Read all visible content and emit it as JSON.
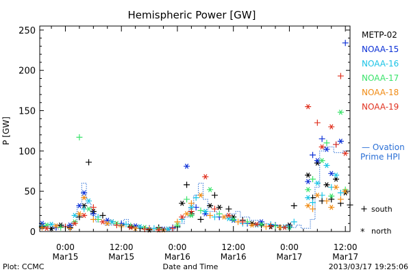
{
  "chart_data": {
    "type": "scatter",
    "title": "Hemispheric Power [GW]",
    "ylabel": "P [GW]",
    "xlabel": "Date and Time",
    "ylim": [
      0,
      255
    ],
    "yticks": [
      0,
      50,
      100,
      150,
      200,
      250
    ],
    "xlim": [
      -5.5,
      61
    ],
    "xticks": [
      {
        "x": 0,
        "time": "0:00",
        "date": "Mar15"
      },
      {
        "x": 12,
        "time": "12:00",
        "date": "Mar15"
      },
      {
        "x": 24,
        "time": "0:00",
        "date": "Mar16"
      },
      {
        "x": 36,
        "time": "12:00",
        "date": "Mar16"
      },
      {
        "x": 48,
        "time": "0:00",
        "date": "Mar17"
      },
      {
        "x": 60,
        "time": "12:00",
        "date": "Mar17"
      }
    ],
    "legend": [
      "METP-02",
      "NOAA-15",
      "NOAA-16",
      "NOAA-17",
      "NOAA-18",
      "NOAA-19"
    ],
    "legend_colors": [
      "#000000",
      "#0a2fd6",
      "#19c3e6",
      "#39e36a",
      "#f08a12",
      "#e0301e"
    ],
    "ovation_label": [
      "— Ovation",
      "Prime HPI"
    ],
    "ovation_color": "#2a6fd6",
    "marker_legend": {
      "south": "south",
      "north": "north"
    },
    "credit": "Plot: CCMC",
    "timestamp": "2013/03/17 19:25:06",
    "ovation": [
      [
        -5.5,
        6
      ],
      [
        -3.5,
        3
      ],
      [
        -1.5,
        7
      ],
      [
        0.5,
        4
      ],
      [
        1.5,
        12
      ],
      [
        2.5,
        32
      ],
      [
        3.5,
        60
      ],
      [
        4.5,
        35
      ],
      [
        5.5,
        20
      ],
      [
        6.5,
        12
      ],
      [
        8.5,
        8
      ],
      [
        10.5,
        10
      ],
      [
        12.5,
        15
      ],
      [
        13.5,
        8
      ],
      [
        15.5,
        5
      ],
      [
        17.5,
        3
      ],
      [
        19.5,
        4
      ],
      [
        21.5,
        2
      ],
      [
        23.5,
        5
      ],
      [
        24.5,
        10
      ],
      [
        25.5,
        18
      ],
      [
        26.5,
        30
      ],
      [
        27.5,
        45
      ],
      [
        28.5,
        60
      ],
      [
        29.5,
        40
      ],
      [
        30.5,
        25
      ],
      [
        32.5,
        18
      ],
      [
        34.5,
        22
      ],
      [
        36.5,
        25
      ],
      [
        37.5,
        18
      ],
      [
        39.5,
        14
      ],
      [
        41.5,
        10
      ],
      [
        43.5,
        8
      ],
      [
        45.5,
        6
      ],
      [
        47.5,
        5
      ],
      [
        49.5,
        8
      ],
      [
        50.5,
        4
      ],
      [
        52.5,
        15
      ],
      [
        53.5,
        55
      ],
      [
        54.5,
        100
      ],
      [
        55.5,
        105
      ],
      [
        57.5,
        98
      ],
      [
        59.5,
        100
      ],
      [
        61,
        95
      ]
    ],
    "series": [
      {
        "name": "METP-02",
        "points": [
          [
            -5,
            6,
            "n"
          ],
          [
            -3,
            4,
            "n"
          ],
          [
            -1,
            8,
            "n"
          ],
          [
            1,
            5,
            "n"
          ],
          [
            3,
            18,
            "s"
          ],
          [
            4,
            32,
            "n"
          ],
          [
            5,
            86,
            "s"
          ],
          [
            6,
            25,
            "n"
          ],
          [
            8,
            20,
            "s"
          ],
          [
            10,
            12,
            "n"
          ],
          [
            12,
            8,
            "s"
          ],
          [
            14,
            6,
            "n"
          ],
          [
            16,
            4,
            "s"
          ],
          [
            18,
            2,
            "n"
          ],
          [
            20,
            5,
            "s"
          ],
          [
            22,
            3,
            "n"
          ],
          [
            24,
            6,
            "s"
          ],
          [
            25,
            35,
            "n"
          ],
          [
            26,
            58,
            "s"
          ],
          [
            27,
            22,
            "n"
          ],
          [
            29,
            15,
            "s"
          ],
          [
            31,
            32,
            "n"
          ],
          [
            32,
            45,
            "s"
          ],
          [
            33,
            30,
            "n"
          ],
          [
            35,
            28,
            "s"
          ],
          [
            36,
            18,
            "n"
          ],
          [
            38,
            14,
            "s"
          ],
          [
            40,
            10,
            "n"
          ],
          [
            42,
            8,
            "s"
          ],
          [
            44,
            6,
            "n"
          ],
          [
            46,
            5,
            "s"
          ],
          [
            48,
            8,
            "n"
          ],
          [
            49,
            32,
            "s"
          ],
          [
            52,
            70,
            "n"
          ],
          [
            53,
            42,
            "s"
          ],
          [
            54,
            85,
            "n"
          ],
          [
            55,
            38,
            "s"
          ],
          [
            56,
            58,
            "n"
          ],
          [
            57,
            40,
            "s"
          ],
          [
            58,
            65,
            "n"
          ],
          [
            59,
            35,
            "s"
          ],
          [
            60,
            48,
            "n"
          ],
          [
            61,
            33,
            "s"
          ]
        ]
      },
      {
        "name": "NOAA-15",
        "points": [
          [
            -5,
            10,
            "n"
          ],
          [
            -2,
            5,
            "s"
          ],
          [
            1,
            8,
            "n"
          ],
          [
            3,
            32,
            "n"
          ],
          [
            4,
            48,
            "n"
          ],
          [
            6,
            22,
            "s"
          ],
          [
            9,
            14,
            "n"
          ],
          [
            12,
            10,
            "s"
          ],
          [
            15,
            7,
            "n"
          ],
          [
            18,
            4,
            "s"
          ],
          [
            21,
            3,
            "n"
          ],
          [
            23,
            5,
            "s"
          ],
          [
            26,
            81,
            "n"
          ],
          [
            28,
            30,
            "s"
          ],
          [
            30,
            22,
            "n"
          ],
          [
            33,
            18,
            "s"
          ],
          [
            36,
            14,
            "n"
          ],
          [
            39,
            10,
            "s"
          ],
          [
            42,
            12,
            "n"
          ],
          [
            45,
            8,
            "s"
          ],
          [
            48,
            6,
            "n"
          ],
          [
            52,
            62,
            "n"
          ],
          [
            53,
            95,
            "s"
          ],
          [
            54,
            88,
            "n"
          ],
          [
            55,
            115,
            "s"
          ],
          [
            56,
            102,
            "n"
          ],
          [
            57,
            72,
            "n"
          ],
          [
            58,
            108,
            "s"
          ],
          [
            59,
            112,
            "n"
          ],
          [
            60,
            234,
            "s"
          ]
        ]
      },
      {
        "name": "NOAA-16",
        "points": [
          [
            -5,
            7,
            "s"
          ],
          [
            -3,
            9,
            "n"
          ],
          [
            0,
            6,
            "s"
          ],
          [
            2,
            20,
            "n"
          ],
          [
            4,
            28,
            "s"
          ],
          [
            5,
            38,
            "n"
          ],
          [
            7,
            18,
            "s"
          ],
          [
            10,
            12,
            "n"
          ],
          [
            13,
            9,
            "s"
          ],
          [
            16,
            6,
            "n"
          ],
          [
            19,
            4,
            "s"
          ],
          [
            22,
            3,
            "n"
          ],
          [
            25,
            15,
            "s"
          ],
          [
            27,
            30,
            "n"
          ],
          [
            28,
            42,
            "s"
          ],
          [
            30,
            25,
            "n"
          ],
          [
            32,
            18,
            "s"
          ],
          [
            35,
            16,
            "n"
          ],
          [
            38,
            10,
            "s"
          ],
          [
            41,
            8,
            "n"
          ],
          [
            44,
            9,
            "s"
          ],
          [
            47,
            6,
            "n"
          ],
          [
            49,
            12,
            "s"
          ],
          [
            52,
            42,
            "n"
          ],
          [
            53,
            36,
            "s"
          ],
          [
            54,
            60,
            "n"
          ],
          [
            55,
            45,
            "s"
          ],
          [
            56,
            82,
            "n"
          ],
          [
            57,
            55,
            "s"
          ],
          [
            58,
            70,
            "n"
          ],
          [
            59,
            48,
            "s"
          ]
        ]
      },
      {
        "name": "NOAA-17",
        "points": [
          [
            -4,
            8,
            "n"
          ],
          [
            -1,
            5,
            "s"
          ],
          [
            2,
            12,
            "n"
          ],
          [
            3,
            117,
            "s"
          ],
          [
            5,
            28,
            "n"
          ],
          [
            7,
            15,
            "s"
          ],
          [
            11,
            10,
            "n"
          ],
          [
            14,
            7,
            "s"
          ],
          [
            17,
            5,
            "n"
          ],
          [
            20,
            3,
            "s"
          ],
          [
            24,
            8,
            "n"
          ],
          [
            26,
            40,
            "s"
          ],
          [
            27,
            20,
            "n"
          ],
          [
            29,
            26,
            "s"
          ],
          [
            31,
            52,
            "n"
          ],
          [
            33,
            22,
            "s"
          ],
          [
            36,
            15,
            "n"
          ],
          [
            39,
            12,
            "s"
          ],
          [
            42,
            9,
            "n"
          ],
          [
            45,
            7,
            "s"
          ],
          [
            48,
            5,
            "n"
          ],
          [
            52,
            52,
            "n"
          ],
          [
            53,
            65,
            "s"
          ],
          [
            55,
            88,
            "n"
          ],
          [
            56,
            110,
            "s"
          ],
          [
            57,
            44,
            "n"
          ],
          [
            59,
            148,
            "n"
          ],
          [
            60,
            52,
            "s"
          ]
        ]
      },
      {
        "name": "NOAA-18",
        "points": [
          [
            -5,
            5,
            "s"
          ],
          [
            -2,
            7,
            "n"
          ],
          [
            1,
            4,
            "s"
          ],
          [
            3,
            22,
            "n"
          ],
          [
            4,
            42,
            "n"
          ],
          [
            6,
            15,
            "s"
          ],
          [
            9,
            10,
            "n"
          ],
          [
            12,
            6,
            "s"
          ],
          [
            15,
            4,
            "n"
          ],
          [
            18,
            3,
            "s"
          ],
          [
            21,
            2,
            "n"
          ],
          [
            24,
            12,
            "s"
          ],
          [
            26,
            22,
            "n"
          ],
          [
            27,
            35,
            "s"
          ],
          [
            29,
            45,
            "n"
          ],
          [
            31,
            20,
            "s"
          ],
          [
            34,
            18,
            "n"
          ],
          [
            37,
            12,
            "s"
          ],
          [
            40,
            8,
            "n"
          ],
          [
            43,
            6,
            "s"
          ],
          [
            46,
            5,
            "n"
          ],
          [
            52,
            32,
            "n"
          ],
          [
            53,
            28,
            "s"
          ],
          [
            54,
            45,
            "n"
          ],
          [
            56,
            38,
            "s"
          ],
          [
            57,
            30,
            "n"
          ],
          [
            58,
            55,
            "n"
          ],
          [
            59,
            40,
            "s"
          ],
          [
            60,
            50,
            "n"
          ]
        ]
      },
      {
        "name": "NOAA-19",
        "points": [
          [
            -4,
            4,
            "n"
          ],
          [
            0,
            6,
            "s"
          ],
          [
            2,
            10,
            "n"
          ],
          [
            4,
            20,
            "n"
          ],
          [
            6,
            30,
            "s"
          ],
          [
            8,
            12,
            "n"
          ],
          [
            11,
            8,
            "s"
          ],
          [
            14,
            5,
            "n"
          ],
          [
            17,
            3,
            "s"
          ],
          [
            20,
            2,
            "n"
          ],
          [
            23,
            4,
            "s"
          ],
          [
            25,
            18,
            "n"
          ],
          [
            27,
            25,
            "s"
          ],
          [
            30,
            68,
            "n"
          ],
          [
            32,
            28,
            "s"
          ],
          [
            35,
            20,
            "n"
          ],
          [
            38,
            12,
            "s"
          ],
          [
            41,
            9,
            "n"
          ],
          [
            44,
            7,
            "s"
          ],
          [
            47,
            5,
            "n"
          ],
          [
            52,
            155,
            "n"
          ],
          [
            54,
            135,
            "s"
          ],
          [
            55,
            105,
            "n"
          ],
          [
            57,
            130,
            "n"
          ],
          [
            58,
            108,
            "s"
          ],
          [
            59,
            193,
            "s"
          ],
          [
            60,
            97,
            "n"
          ]
        ]
      }
    ]
  }
}
